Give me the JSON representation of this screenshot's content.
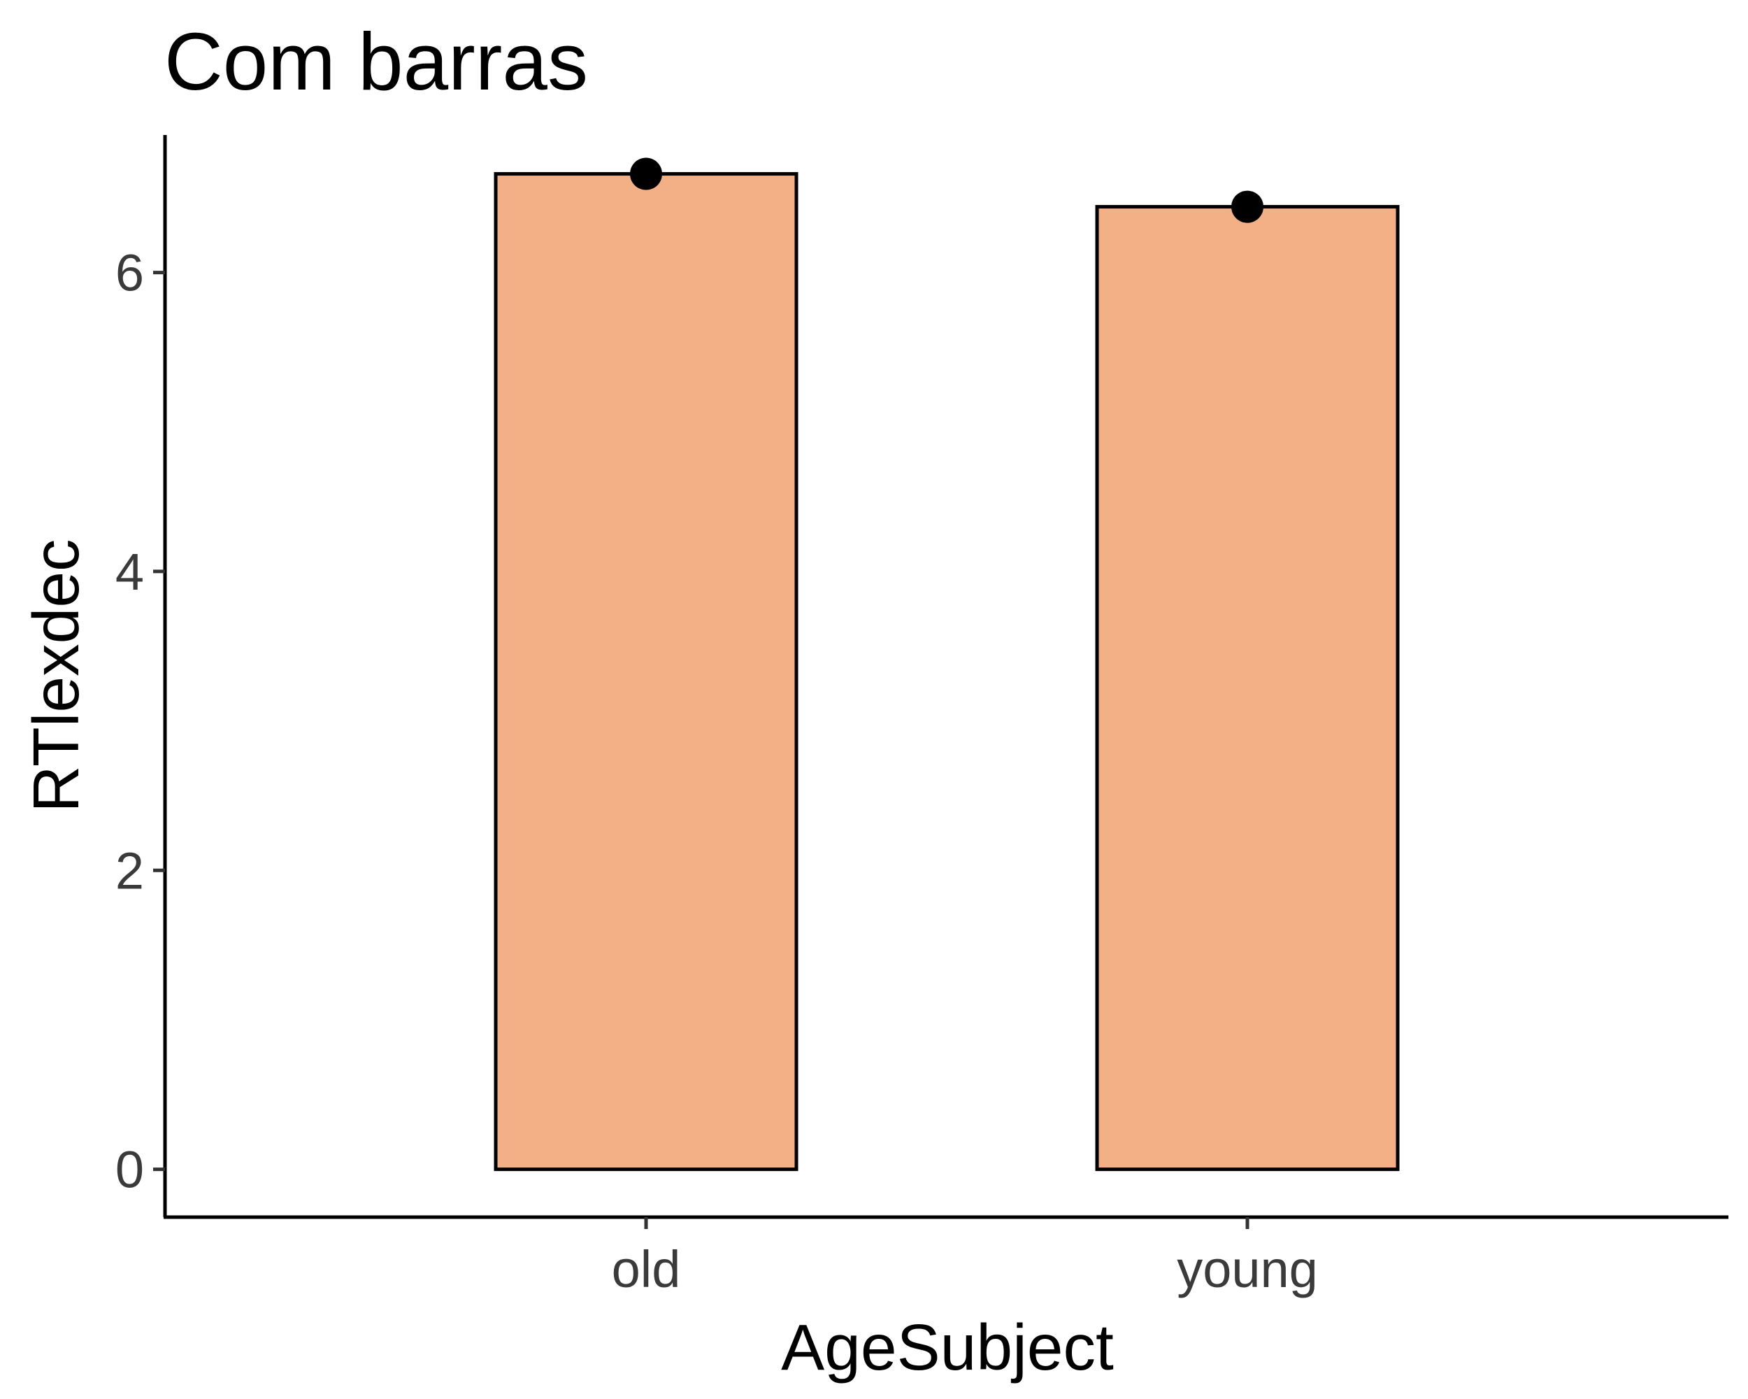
{
  "chart_data": {
    "type": "bar",
    "title": "Com barras",
    "xlabel": "AgeSubject",
    "ylabel": "RTlexdec",
    "categories": [
      "old",
      "young"
    ],
    "values": [
      6.66,
      6.44
    ],
    "points": [
      6.66,
      6.44
    ],
    "yticks": [
      0,
      2,
      4,
      6
    ],
    "ylim": [
      -0.32,
      6.92
    ],
    "bar_color": "#F3B086",
    "grid": false,
    "legend": "none"
  }
}
